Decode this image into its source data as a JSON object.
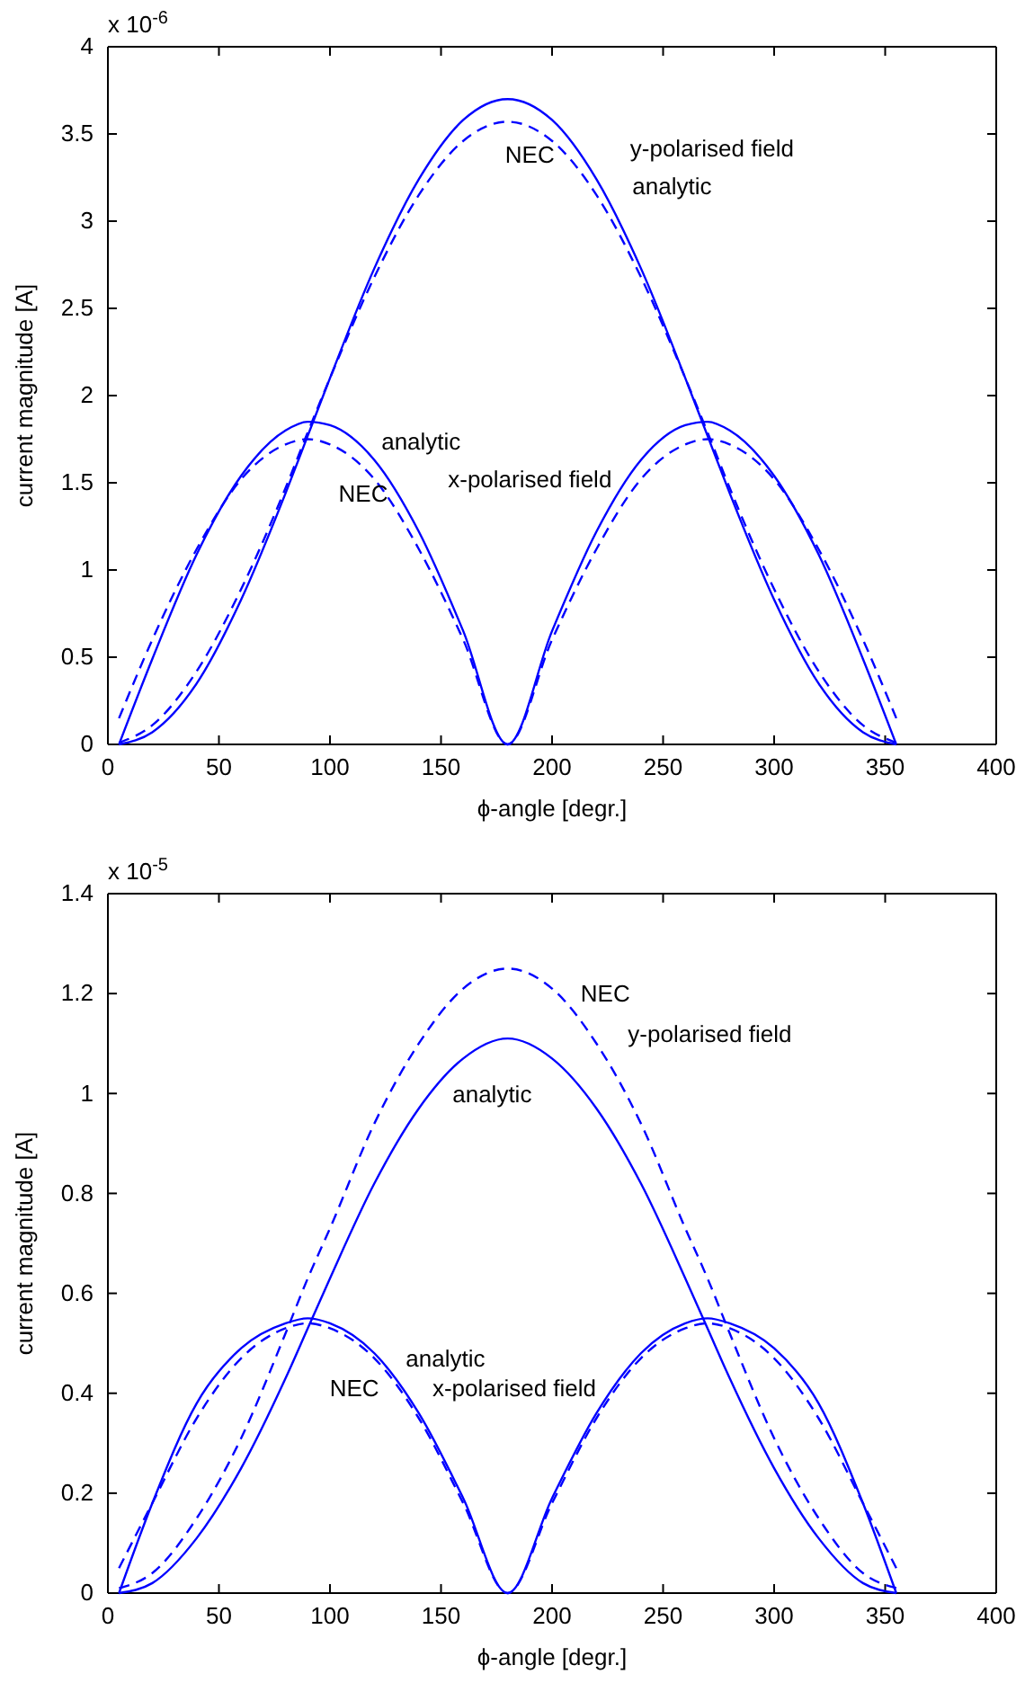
{
  "chart_data": [
    {
      "type": "line",
      "xlabel": "ϕ-angle [degr.]",
      "ylabel": "current magnitude [A]",
      "xlim": [
        0,
        400
      ],
      "xticks": [
        0,
        50,
        100,
        150,
        200,
        250,
        300,
        350,
        400
      ],
      "ylim": [
        0,
        4
      ],
      "yticks": [
        0,
        0.5,
        1,
        1.5,
        2,
        2.5,
        3,
        3.5,
        4
      ],
      "x": [
        5,
        20,
        40,
        60,
        80,
        90,
        100,
        120,
        140,
        160,
        180,
        200,
        220,
        240,
        260,
        270,
        280,
        300,
        320,
        340,
        355
      ],
      "series": [
        {
          "color": "#0000ff",
          "line_style": "solid",
          "values": [
            0,
            0.07,
            0.35,
            0.83,
            1.44,
            1.77,
            2.1,
            2.73,
            3.24,
            3.58,
            3.7,
            3.58,
            3.24,
            2.73,
            2.1,
            1.77,
            1.44,
            0.83,
            0.35,
            0.07,
            0
          ]
        },
        {
          "color": "#0000ff",
          "line_style": "dashed",
          "values": [
            0.01,
            0.11,
            0.42,
            0.89,
            1.47,
            1.79,
            2.1,
            2.68,
            3.15,
            3.46,
            3.57,
            3.46,
            3.15,
            2.68,
            2.1,
            1.79,
            1.47,
            0.89,
            0.42,
            0.11,
            0.01
          ]
        },
        {
          "color": "#0000ff",
          "line_style": "solid",
          "values": [
            0,
            0.49,
            1.09,
            1.54,
            1.8,
            1.85,
            1.83,
            1.63,
            1.22,
            0.65,
            0,
            0.65,
            1.22,
            1.63,
            1.83,
            1.85,
            1.8,
            1.54,
            1.09,
            0.49,
            0
          ]
        },
        {
          "color": "#0000ff",
          "line_style": "dashed",
          "values": [
            0.15,
            0.6,
            1.12,
            1.52,
            1.72,
            1.75,
            1.72,
            1.52,
            1.12,
            0.6,
            0,
            0.6,
            1.12,
            1.52,
            1.72,
            1.75,
            1.72,
            1.52,
            1.12,
            0.6,
            0.15
          ]
        }
      ],
      "annotations": [
        "x 10$^{-6}$",
        "NEC",
        "y-polarised field",
        "analytic",
        "analytic",
        "NEC",
        "x-polarised field"
      ]
    },
    {
      "type": "line",
      "xlabel": "ϕ-angle [degr.]",
      "ylabel": "current magnitude [A]",
      "xlim": [
        0,
        400
      ],
      "xticks": [
        0,
        50,
        100,
        150,
        200,
        250,
        300,
        350,
        400
      ],
      "ylim": [
        0,
        1.4
      ],
      "yticks": [
        0,
        0.2,
        0.4,
        0.6,
        0.8,
        1,
        1.2,
        1.4
      ],
      "x": [
        5,
        20,
        40,
        60,
        80,
        90,
        100,
        120,
        140,
        160,
        180,
        200,
        220,
        240,
        260,
        270,
        280,
        300,
        320,
        340,
        355
      ],
      "series": [
        {
          "color": "#0000ff",
          "line_style": "solid",
          "values": [
            0,
            0.02,
            0.11,
            0.25,
            0.43,
            0.53,
            0.63,
            0.82,
            0.97,
            1.07,
            1.11,
            1.07,
            0.97,
            0.82,
            0.63,
            0.53,
            0.43,
            0.25,
            0.11,
            0.02,
            0
          ]
        },
        {
          "color": "#0000ff",
          "line_style": "dashed",
          "values": [
            0.01,
            0.04,
            0.15,
            0.31,
            0.52,
            0.63,
            0.73,
            0.94,
            1.1,
            1.21,
            1.25,
            1.21,
            1.1,
            0.94,
            0.73,
            0.63,
            0.52,
            0.31,
            0.15,
            0.04,
            0.01
          ]
        },
        {
          "color": "#0000ff",
          "line_style": "solid",
          "values": [
            0,
            0.18,
            0.38,
            0.49,
            0.54,
            0.55,
            0.54,
            0.48,
            0.36,
            0.19,
            0,
            0.19,
            0.36,
            0.48,
            0.54,
            0.55,
            0.54,
            0.49,
            0.38,
            0.18,
            0
          ]
        },
        {
          "color": "#0000ff",
          "line_style": "dashed",
          "values": [
            0.05,
            0.18,
            0.35,
            0.47,
            0.53,
            0.54,
            0.53,
            0.47,
            0.35,
            0.18,
            0,
            0.18,
            0.35,
            0.47,
            0.53,
            0.54,
            0.53,
            0.47,
            0.35,
            0.18,
            0.05
          ]
        }
      ],
      "annotations": [
        "x 10$^{-5}$",
        "NEC",
        "y-polarised field",
        "analytic",
        "analytic",
        "NEC",
        "x-polarised field"
      ]
    }
  ]
}
